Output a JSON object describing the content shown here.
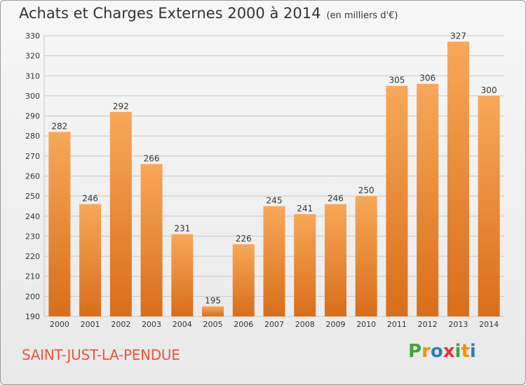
{
  "title": {
    "main": "Achats et Charges Externes 2000 à 2014",
    "unit": "(en milliers d'€)"
  },
  "commune": "SAINT-JUST-LA-PENDUE",
  "logo": {
    "letters": [
      "P",
      "r",
      "o",
      "x",
      "i",
      "t",
      "i"
    ],
    "colors": [
      "#3fa535",
      "#f39200",
      "#2a7fc1",
      "#e6332a",
      "#3fa535",
      "#f39200",
      "#2a7fc1"
    ]
  },
  "colors": {
    "bar_light": "#f7a858",
    "bar_dark": "#d96e1a",
    "grid": "#c8c8c8",
    "axis_text": "#333333",
    "commune": "#e8543f"
  },
  "chart_data": {
    "type": "bar",
    "categories": [
      "2000",
      "2001",
      "2002",
      "2003",
      "2004",
      "2005",
      "2006",
      "2007",
      "2008",
      "2009",
      "2010",
      "2011",
      "2012",
      "2013",
      "2014"
    ],
    "values": [
      282,
      246,
      292,
      266,
      231,
      195,
      226,
      245,
      241,
      246,
      250,
      305,
      306,
      327,
      300
    ],
    "ylim": [
      190,
      330
    ],
    "yticks": [
      190,
      200,
      210,
      220,
      230,
      240,
      250,
      260,
      270,
      280,
      290,
      300,
      310,
      320,
      330
    ],
    "grid": true,
    "title": "Achats et Charges Externes 2000 à 2014",
    "xlabel": "",
    "ylabel": ""
  }
}
